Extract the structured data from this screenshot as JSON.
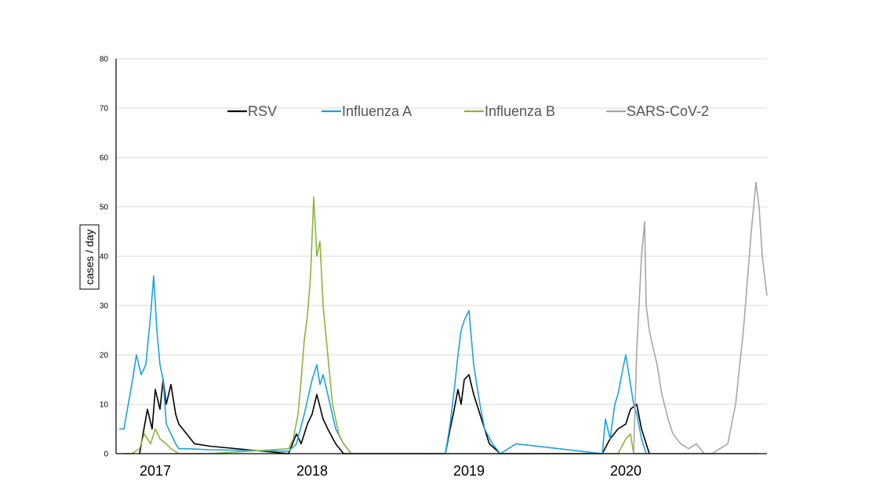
{
  "chart_data": {
    "type": "line",
    "ylabel": "cases / day",
    "ylim": [
      0,
      80
    ],
    "yticks": [
      "0",
      "10",
      "20",
      "30",
      "40",
      "50",
      "60",
      "70",
      "80"
    ],
    "xlim": [
      2016.9,
      2021.05
    ],
    "year_labels": [
      "2017",
      "2018",
      "2019",
      "2020"
    ],
    "year_label_positions": [
      2017.15,
      2018.15,
      2019.15,
      2020.15
    ],
    "grid": true,
    "legend_position": "top",
    "series": [
      {
        "name": "RSV",
        "color": "#000000",
        "x": [
          2017.05,
          2017.1,
          2017.13,
          2017.15,
          2017.18,
          2017.2,
          2017.22,
          2017.25,
          2017.28,
          2017.3,
          2017.4,
          2017.5,
          2018.0,
          2018.05,
          2018.08,
          2018.12,
          2018.15,
          2018.18,
          2018.22,
          2018.25,
          2018.3,
          2018.35,
          2018.4,
          2019.0,
          2019.03,
          2019.05,
          2019.08,
          2019.1,
          2019.12,
          2019.15,
          2019.18,
          2019.2,
          2019.22,
          2019.25,
          2019.28,
          2019.35,
          2020.0,
          2020.05,
          2020.1,
          2020.15,
          2020.18,
          2020.22,
          2020.25,
          2020.3
        ],
        "y": [
          0,
          9,
          5,
          13,
          9,
          15,
          10,
          14,
          8,
          6,
          2,
          1.5,
          0,
          4,
          2,
          6,
          8,
          12,
          7,
          5,
          2,
          0,
          0,
          0,
          5,
          8,
          13,
          10,
          15,
          16,
          12,
          10,
          8,
          5,
          2,
          0,
          0,
          3,
          5,
          6,
          9,
          10,
          5,
          0
        ]
      },
      {
        "name": "Influenza A",
        "color": "#1aa3dc",
        "x": [
          2016.92,
          2016.95,
          2017.0,
          2017.03,
          2017.06,
          2017.09,
          2017.12,
          2017.14,
          2017.16,
          2017.18,
          2017.2,
          2017.22,
          2017.25,
          2017.28,
          2017.3,
          2017.35,
          2017.5,
          2018.0,
          2018.05,
          2018.1,
          2018.15,
          2018.18,
          2018.2,
          2018.22,
          2018.25,
          2018.3,
          2018.35,
          2018.4,
          2019.0,
          2019.03,
          2019.06,
          2019.08,
          2019.1,
          2019.12,
          2019.15,
          2019.18,
          2019.22,
          2019.25,
          2019.3,
          2019.35,
          2019.45,
          2020.0,
          2020.02,
          2020.05,
          2020.08,
          2020.1,
          2020.13,
          2020.15,
          2020.18,
          2020.2,
          2020.22,
          2020.25,
          2020.28
        ],
        "y": [
          5,
          5,
          14,
          20,
          16,
          18,
          28,
          36,
          25,
          18,
          15,
          6,
          4,
          2,
          1,
          1,
          0.8,
          0.5,
          2,
          8,
          15,
          18,
          14,
          16,
          12,
          5,
          2,
          0,
          0,
          6,
          14,
          20,
          25,
          27,
          29,
          18,
          10,
          5,
          2,
          0,
          2,
          0,
          7,
          3,
          10,
          12,
          17,
          20,
          14,
          10,
          8,
          3,
          0
        ]
      },
      {
        "name": "Influenza B",
        "color": "#8db43e",
        "x": [
          2016.95,
          2017.0,
          2017.05,
          2017.08,
          2017.12,
          2017.15,
          2017.18,
          2017.22,
          2017.25,
          2017.3,
          2017.5,
          2018.0,
          2018.03,
          2018.06,
          2018.08,
          2018.1,
          2018.12,
          2018.14,
          2018.16,
          2018.18,
          2018.2,
          2018.22,
          2018.25,
          2018.28,
          2018.32,
          2018.35,
          2018.4,
          2018.6,
          2020.0,
          2020.1,
          2020.15,
          2020.18,
          2020.2,
          2020.5,
          2021.0
        ],
        "y": [
          0,
          0,
          1,
          4,
          2,
          5,
          3,
          2,
          1,
          0,
          0,
          1,
          3,
          8,
          15,
          23,
          28,
          36,
          52,
          40,
          43,
          30,
          20,
          10,
          4,
          2,
          0,
          0,
          0,
          0,
          3,
          4,
          0,
          0,
          0
        ]
      },
      {
        "name": "SARS-CoV-2",
        "color": "#a6a6a6",
        "x": [
          2020.2,
          2020.22,
          2020.25,
          2020.27,
          2020.28,
          2020.3,
          2020.32,
          2020.35,
          2020.38,
          2020.42,
          2020.45,
          2020.5,
          2020.55,
          2020.6,
          2020.65,
          2020.7,
          2020.75,
          2020.8,
          2020.85,
          2020.9,
          2020.95,
          2020.98,
          2021.0,
          2021.02,
          2021.05
        ],
        "y": [
          0,
          21,
          40,
          47,
          30,
          25,
          22,
          18,
          12,
          7,
          4,
          2,
          1,
          2,
          0,
          0,
          1,
          2,
          10,
          25,
          45,
          55,
          50,
          40,
          32
        ]
      }
    ]
  }
}
